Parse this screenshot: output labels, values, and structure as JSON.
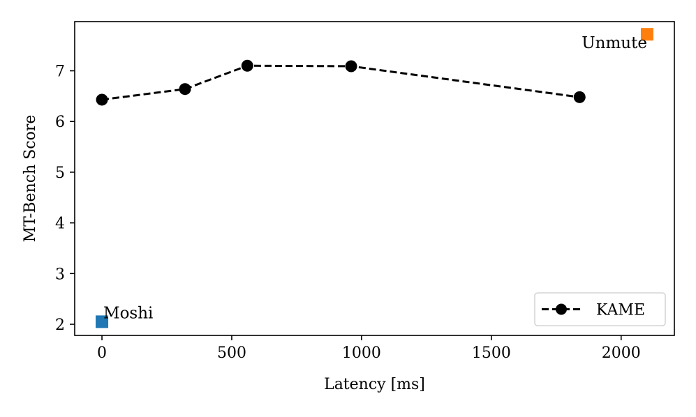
{
  "chart_data": {
    "type": "line",
    "xlabel": "Latency [ms]",
    "ylabel": "MT-Bench Score",
    "xlim": [
      -105,
      2205
    ],
    "ylim": [
      1.78,
      7.97
    ],
    "x_ticks": [
      0,
      500,
      1000,
      1500,
      2000
    ],
    "y_ticks": [
      2,
      3,
      4,
      5,
      6,
      7
    ],
    "x_tick_labels": [
      "0",
      "500",
      "1000",
      "1500",
      "2000"
    ],
    "y_tick_labels": [
      "2",
      "3",
      "4",
      "5",
      "6",
      "7"
    ],
    "grid": false,
    "legend_position": "lower-right",
    "series": [
      {
        "name": "KAME",
        "style": "dashed line with circle markers",
        "color": "#000000",
        "points": [
          {
            "x": 0,
            "y": 6.43
          },
          {
            "x": 320,
            "y": 6.64
          },
          {
            "x": 560,
            "y": 7.1
          },
          {
            "x": 960,
            "y": 7.09
          },
          {
            "x": 1840,
            "y": 6.48
          }
        ]
      }
    ],
    "annotated_points": [
      {
        "label": "Moshi",
        "x": 0,
        "y": 2.05,
        "marker": "square",
        "color": "#1f77b4"
      },
      {
        "label": "Unmute",
        "x": 2100,
        "y": 7.72,
        "marker": "square",
        "color": "#ff7f0e"
      }
    ]
  }
}
